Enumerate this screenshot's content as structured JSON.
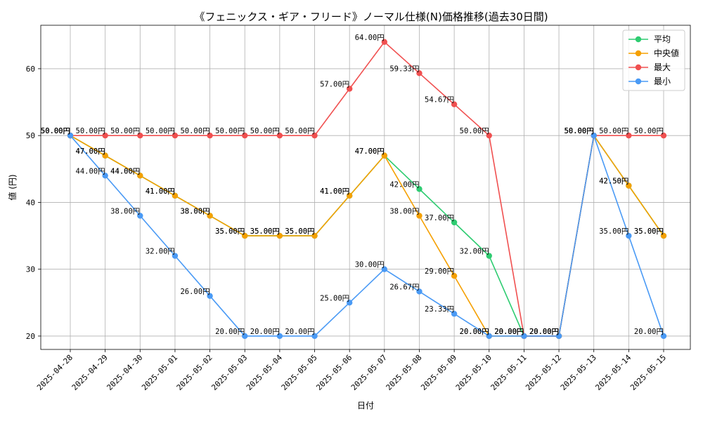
{
  "chart_data": {
    "type": "line",
    "title": "《フェニックス・ギア・フリード》ノーマル仕様(N)価格推移(過去30日間)",
    "xlabel": "日付",
    "ylabel": "値 (円)",
    "ylim": [
      18,
      66.5
    ],
    "yticks": [
      20,
      30,
      40,
      50,
      60
    ],
    "grid": true,
    "legend_position": "top-right",
    "label_suffix": "円",
    "categories": [
      "2025-04-28",
      "2025-04-29",
      "2025-04-30",
      "2025-05-01",
      "2025-05-02",
      "2025-05-03",
      "2025-05-04",
      "2025-05-05",
      "2025-05-06",
      "2025-05-07",
      "2025-05-08",
      "2025-05-09",
      "2025-05-10",
      "2025-05-11",
      "2025-05-12",
      "2025-05-13",
      "2025-05-14",
      "2025-05-15"
    ],
    "series": [
      {
        "name": "平均",
        "color": "#2ecc71",
        "values": [
          50,
          47,
          44,
          41,
          38,
          35,
          35,
          35,
          41,
          47,
          42,
          37,
          32,
          20,
          20,
          50,
          42.5,
          35
        ]
      },
      {
        "name": "中央値",
        "color": "#f5a000",
        "values": [
          50,
          47,
          44,
          41,
          38,
          35,
          35,
          35,
          41,
          47,
          38,
          29,
          20,
          20,
          20,
          50,
          42.5,
          35
        ]
      },
      {
        "name": "最大",
        "color": "#f05050",
        "values": [
          50,
          50,
          50,
          50,
          50,
          50,
          50,
          50,
          57,
          64,
          59.33,
          54.67,
          50,
          20,
          20,
          50,
          50,
          50
        ]
      },
      {
        "name": "最小",
        "color": "#4a9af5",
        "values": [
          50,
          44,
          38,
          32,
          26,
          20,
          20,
          20,
          25,
          30,
          26.67,
          23.33,
          20,
          20,
          20,
          50,
          35,
          20
        ]
      }
    ]
  }
}
